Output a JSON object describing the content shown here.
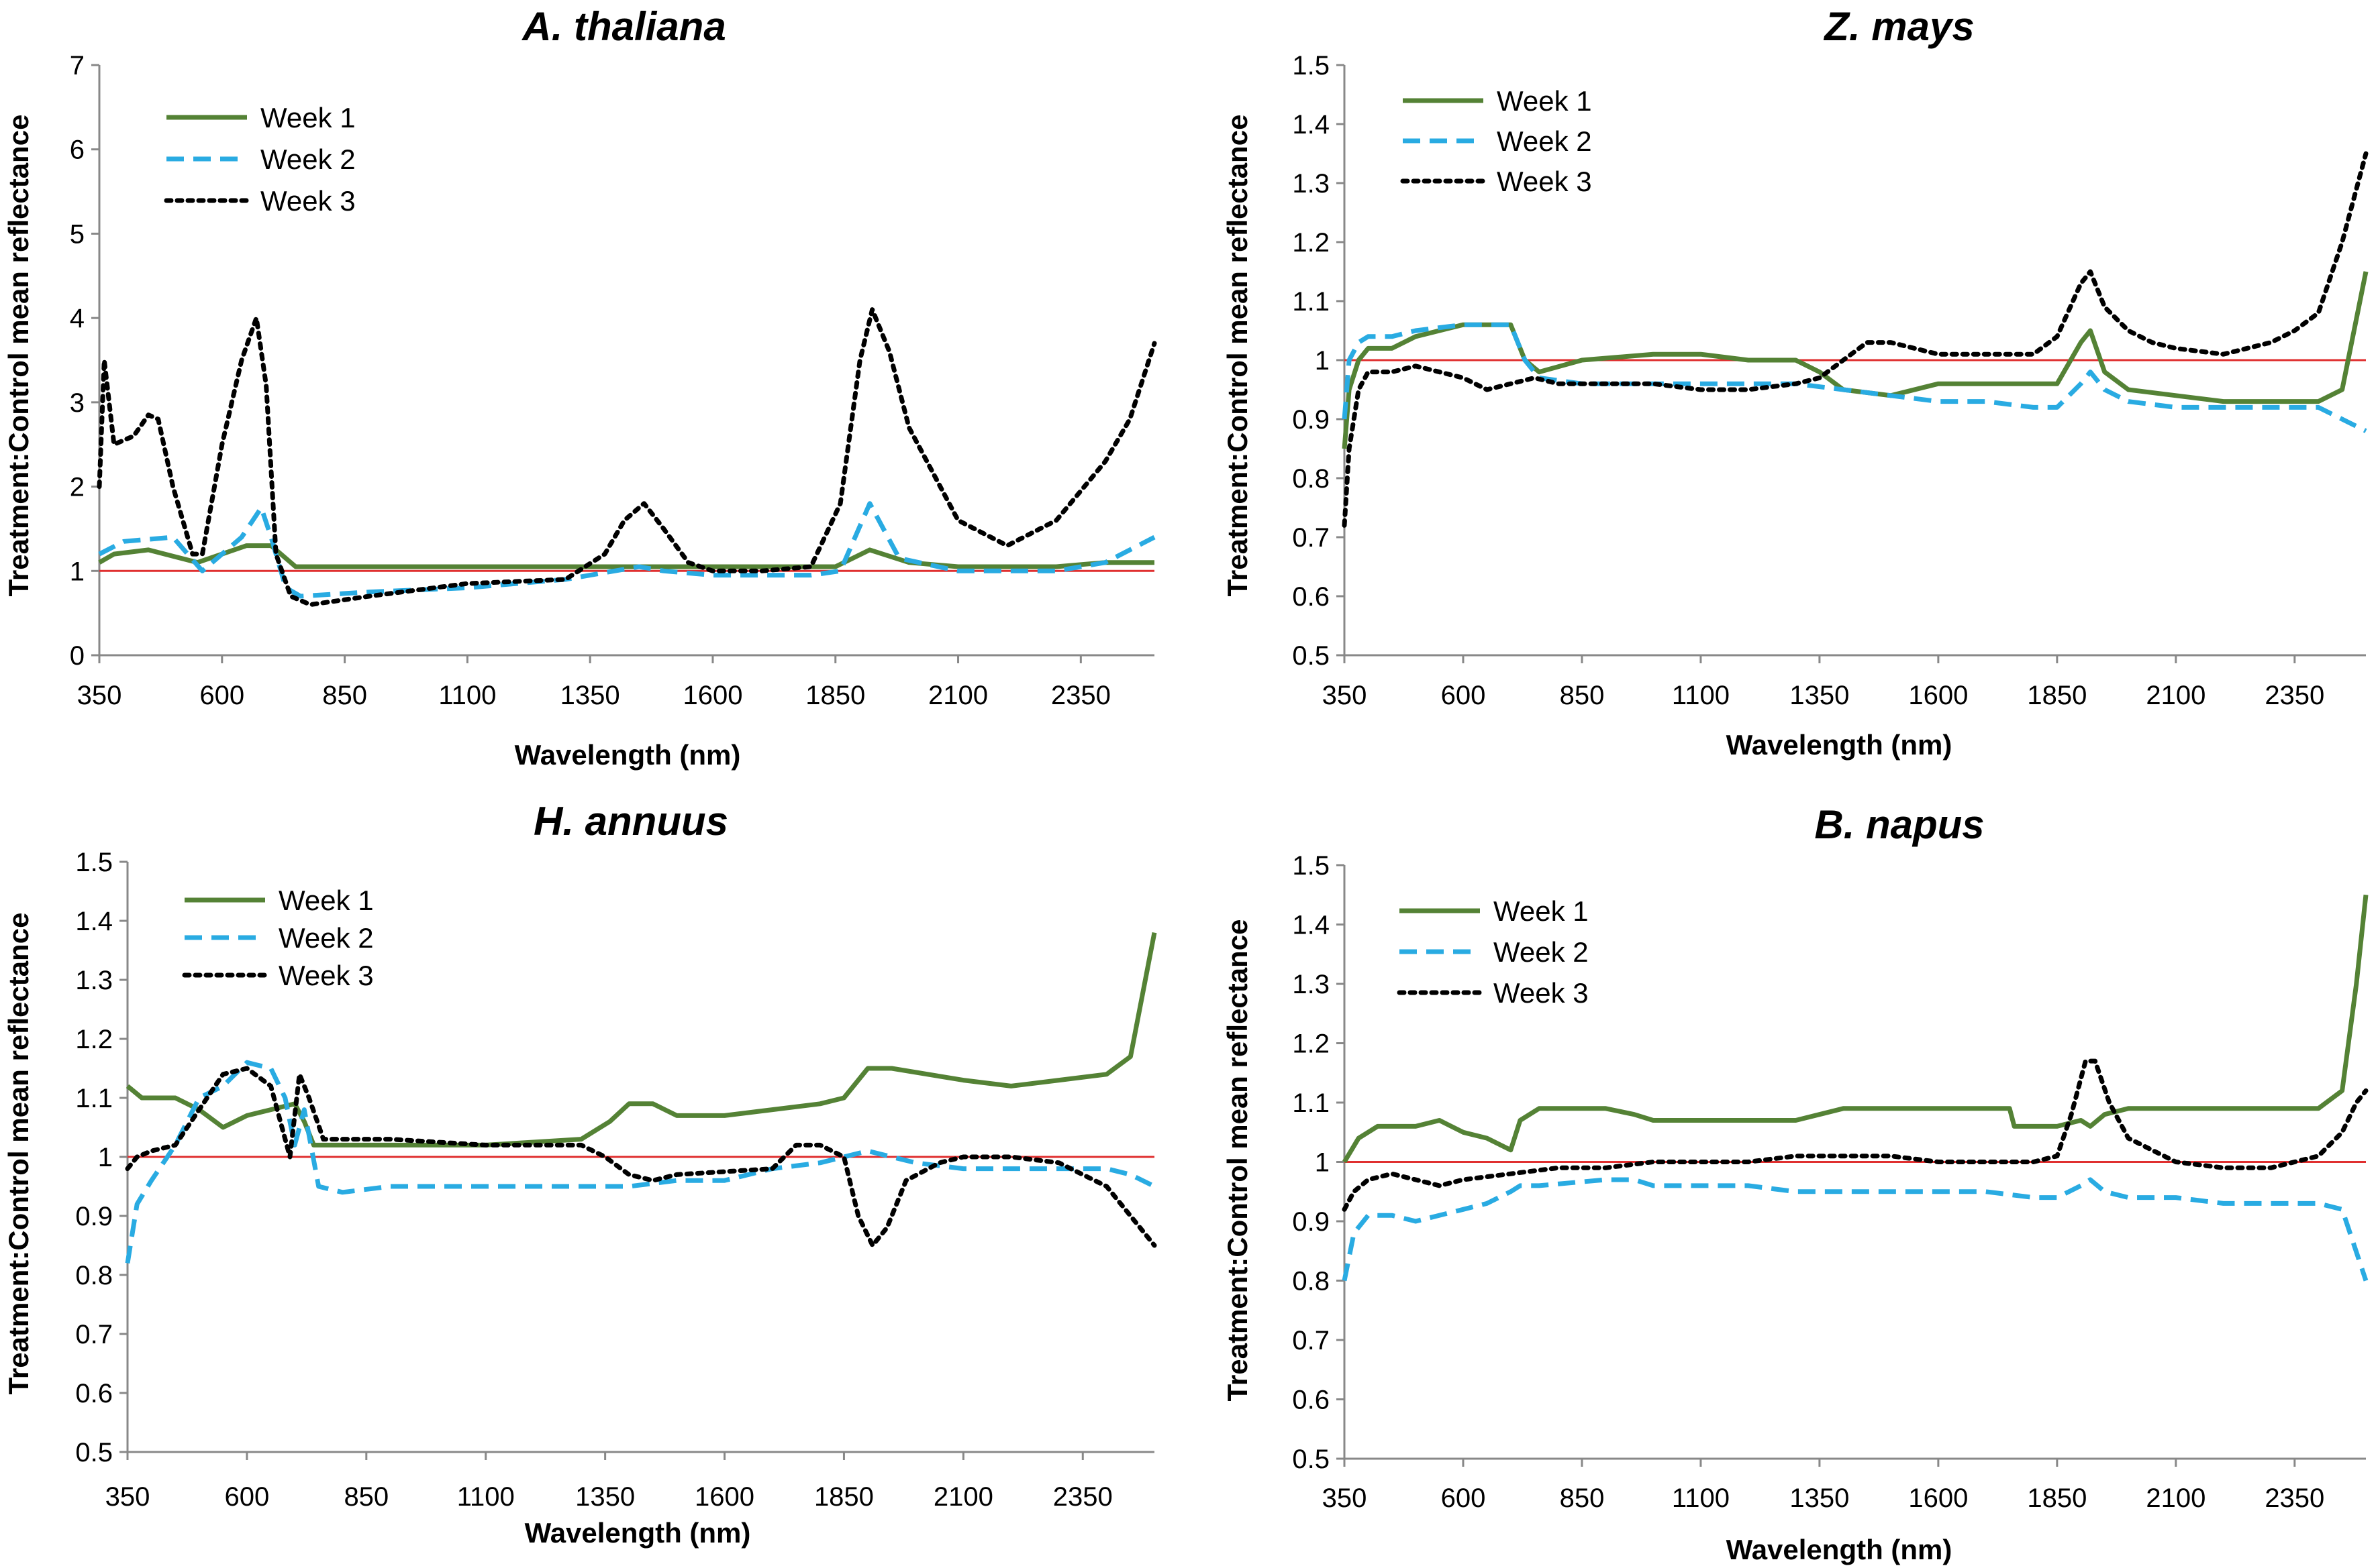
{
  "chart_data": [
    {
      "type": "line",
      "title": "A. thaliana",
      "xlabel": "Wavelength (nm)",
      "ylabel": "Treatment:Control mean reflectance",
      "xlim": [
        350,
        2500
      ],
      "ylim": [
        0,
        7
      ],
      "xticks": [
        "350",
        "600",
        "850",
        "1100",
        "1350",
        "1600",
        "1850",
        "2100",
        "2350"
      ],
      "yticks": [
        "0",
        "1",
        "2",
        "3",
        "4",
        "5",
        "6",
        "7"
      ],
      "reference_line": 1,
      "legend": [
        "Week 1",
        "Week 2",
        "Week 3"
      ],
      "series": [
        {
          "name": "Week 1",
          "x": [
            350,
            380,
            450,
            550,
            650,
            700,
            750,
            900,
            1100,
            1300,
            1400,
            1500,
            1700,
            1850,
            1920,
            2000,
            2100,
            2300,
            2400,
            2500
          ],
          "y": [
            1.1,
            1.2,
            1.25,
            1.1,
            1.3,
            1.3,
            1.05,
            1.05,
            1.05,
            1.05,
            1.05,
            1.05,
            1.05,
            1.05,
            1.25,
            1.1,
            1.05,
            1.05,
            1.1,
            1.1
          ]
        },
        {
          "name": "Week 2",
          "x": [
            350,
            400,
            500,
            560,
            640,
            680,
            700,
            730,
            760,
            900,
            1100,
            1300,
            1400,
            1450,
            1500,
            1600,
            1800,
            1860,
            1920,
            1980,
            2100,
            2300,
            2400,
            2500
          ],
          "y": [
            1.2,
            1.35,
            1.4,
            1.0,
            1.4,
            1.75,
            1.4,
            0.8,
            0.7,
            0.75,
            0.8,
            0.9,
            1.0,
            1.05,
            1.0,
            0.95,
            0.95,
            1.0,
            1.8,
            1.15,
            1.0,
            1.0,
            1.1,
            1.4
          ]
        },
        {
          "name": "Week 3",
          "x": [
            350,
            360,
            380,
            420,
            450,
            470,
            500,
            540,
            560,
            600,
            640,
            670,
            690,
            710,
            740,
            780,
            900,
            1100,
            1300,
            1380,
            1420,
            1460,
            1500,
            1550,
            1600,
            1700,
            1800,
            1860,
            1900,
            1925,
            1960,
            2000,
            2100,
            2200,
            2300,
            2400,
            2450,
            2500
          ],
          "y": [
            2.0,
            3.5,
            2.5,
            2.6,
            2.85,
            2.8,
            2.0,
            1.2,
            1.2,
            2.5,
            3.5,
            4.0,
            3.2,
            1.2,
            0.7,
            0.6,
            0.7,
            0.85,
            0.9,
            1.2,
            1.6,
            1.8,
            1.5,
            1.1,
            1.0,
            1.0,
            1.05,
            1.8,
            3.5,
            4.1,
            3.6,
            2.7,
            1.6,
            1.3,
            1.6,
            2.3,
            2.8,
            3.7
          ]
        }
      ]
    },
    {
      "type": "line",
      "title": "Z. mays",
      "xlabel": "Wavelength (nm)",
      "ylabel": "Treatment:Control mean reflectance",
      "xlim": [
        350,
        2500
      ],
      "ylim": [
        0.5,
        1.5
      ],
      "xticks": [
        "350",
        "600",
        "850",
        "1100",
        "1350",
        "1600",
        "1850",
        "2100",
        "2350"
      ],
      "yticks": [
        "0.5",
        "0.6",
        "0.7",
        "0.8",
        "0.9",
        "1",
        "1.1",
        "1.2",
        "1.3",
        "1.4",
        "1.5"
      ],
      "reference_line": 1,
      "legend": [
        "Week 1",
        "Week 2",
        "Week 3"
      ],
      "series": [
        {
          "name": "Week 1",
          "x": [
            350,
            360,
            380,
            400,
            450,
            500,
            600,
            700,
            730,
            760,
            850,
            1000,
            1100,
            1200,
            1300,
            1350,
            1400,
            1500,
            1600,
            1700,
            1800,
            1850,
            1900,
            1920,
            1950,
            2000,
            2100,
            2200,
            2300,
            2400,
            2450,
            2500
          ],
          "y": [
            0.85,
            0.95,
            1.0,
            1.02,
            1.02,
            1.04,
            1.06,
            1.06,
            1.0,
            0.98,
            1.0,
            1.01,
            1.01,
            1.0,
            1.0,
            0.98,
            0.95,
            0.94,
            0.96,
            0.96,
            0.96,
            0.96,
            1.03,
            1.05,
            0.98,
            0.95,
            0.94,
            0.93,
            0.93,
            0.93,
            0.95,
            1.15
          ]
        },
        {
          "name": "Week 2",
          "x": [
            350,
            360,
            380,
            400,
            450,
            500,
            600,
            700,
            730,
            760,
            850,
            1000,
            1100,
            1200,
            1300,
            1400,
            1500,
            1600,
            1700,
            1800,
            1850,
            1900,
            1920,
            1950,
            2000,
            2100,
            2200,
            2300,
            2400,
            2450,
            2500
          ],
          "y": [
            0.9,
            1.0,
            1.03,
            1.04,
            1.04,
            1.05,
            1.06,
            1.06,
            1.0,
            0.97,
            0.96,
            0.96,
            0.96,
            0.96,
            0.96,
            0.95,
            0.94,
            0.93,
            0.93,
            0.92,
            0.92,
            0.96,
            0.98,
            0.95,
            0.93,
            0.92,
            0.92,
            0.92,
            0.92,
            0.9,
            0.88
          ]
        },
        {
          "name": "Week 3",
          "x": [
            350,
            360,
            380,
            400,
            450,
            500,
            600,
            650,
            700,
            750,
            800,
            900,
            1000,
            1100,
            1200,
            1300,
            1350,
            1400,
            1450,
            1500,
            1600,
            1700,
            1800,
            1850,
            1900,
            1920,
            1950,
            2000,
            2050,
            2100,
            2200,
            2300,
            2350,
            2400,
            2450,
            2500
          ],
          "y": [
            0.72,
            0.85,
            0.95,
            0.98,
            0.98,
            0.99,
            0.97,
            0.95,
            0.96,
            0.97,
            0.96,
            0.96,
            0.96,
            0.95,
            0.95,
            0.96,
            0.97,
            1.0,
            1.03,
            1.03,
            1.01,
            1.01,
            1.01,
            1.04,
            1.13,
            1.15,
            1.09,
            1.05,
            1.03,
            1.02,
            1.01,
            1.03,
            1.05,
            1.08,
            1.2,
            1.35
          ]
        }
      ]
    },
    {
      "type": "line",
      "title": "H. annuus",
      "xlabel": "Wavelength (nm)",
      "ylabel": "Treatment:Control mean reflectance",
      "xlim": [
        350,
        2500
      ],
      "ylim": [
        0.5,
        1.5
      ],
      "xticks": [
        "350",
        "600",
        "850",
        "1100",
        "1350",
        "1600",
        "1850",
        "2100",
        "2350"
      ],
      "yticks": [
        "0.5",
        "0.6",
        "0.7",
        "0.8",
        "0.9",
        "1",
        "1.1",
        "1.2",
        "1.3",
        "1.4",
        "1.5"
      ],
      "reference_line": 1,
      "legend": [
        "Week 1",
        "Week 2",
        "Week 3"
      ],
      "series": [
        {
          "name": "Week 1",
          "x": [
            350,
            380,
            450,
            500,
            550,
            600,
            650,
            700,
            720,
            740,
            900,
            1100,
            1300,
            1360,
            1400,
            1450,
            1500,
            1600,
            1700,
            1800,
            1850,
            1900,
            1950,
            2100,
            2200,
            2300,
            2400,
            2450,
            2500
          ],
          "y": [
            1.12,
            1.1,
            1.1,
            1.08,
            1.05,
            1.07,
            1.08,
            1.09,
            1.06,
            1.02,
            1.02,
            1.02,
            1.03,
            1.06,
            1.09,
            1.09,
            1.07,
            1.07,
            1.08,
            1.09,
            1.1,
            1.15,
            1.15,
            1.13,
            1.12,
            1.13,
            1.14,
            1.17,
            1.38
          ]
        },
        {
          "name": "Week 2",
          "x": [
            350,
            370,
            400,
            450,
            500,
            550,
            600,
            650,
            680,
            700,
            720,
            750,
            800,
            900,
            1000,
            1100,
            1200,
            1300,
            1400,
            1500,
            1600,
            1700,
            1800,
            1900,
            1950,
            2000,
            2100,
            2200,
            2300,
            2400,
            2450,
            2500
          ],
          "y": [
            0.82,
            0.92,
            0.96,
            1.02,
            1.1,
            1.12,
            1.16,
            1.15,
            1.1,
            1.02,
            1.08,
            0.95,
            0.94,
            0.95,
            0.95,
            0.95,
            0.95,
            0.95,
            0.95,
            0.96,
            0.96,
            0.98,
            0.99,
            1.01,
            1.0,
            0.99,
            0.98,
            0.98,
            0.98,
            0.98,
            0.97,
            0.95
          ]
        },
        {
          "name": "Week 3",
          "x": [
            350,
            370,
            400,
            450,
            500,
            550,
            600,
            650,
            690,
            710,
            730,
            760,
            900,
            1100,
            1300,
            1350,
            1400,
            1450,
            1500,
            1700,
            1750,
            1800,
            1850,
            1880,
            1910,
            1940,
            1980,
            2050,
            2100,
            2200,
            2300,
            2400,
            2450,
            2500
          ],
          "y": [
            0.98,
            1.0,
            1.01,
            1.02,
            1.08,
            1.14,
            1.15,
            1.12,
            1.0,
            1.14,
            1.1,
            1.03,
            1.03,
            1.02,
            1.02,
            1.0,
            0.97,
            0.96,
            0.97,
            0.98,
            1.02,
            1.02,
            1.0,
            0.9,
            0.85,
            0.88,
            0.96,
            0.99,
            1.0,
            1.0,
            0.99,
            0.95,
            0.9,
            0.85
          ]
        }
      ]
    },
    {
      "type": "line",
      "title": "B. napus",
      "xlabel": "Wavelength (nm)",
      "ylabel": "Treatment:Control mean reflectance",
      "xlim": [
        350,
        2500
      ],
      "ylim": [
        0.5,
        1.5
      ],
      "xticks": [
        "350",
        "600",
        "850",
        "1100",
        "1350",
        "1600",
        "1850",
        "2100",
        "2350"
      ],
      "yticks": [
        "0.5",
        "0.6",
        "0.7",
        "0.8",
        "0.9",
        "1",
        "1.1",
        "1.2",
        "1.3",
        "1.4",
        "1.5"
      ],
      "reference_line": 1,
      "legend": [
        "Week 1",
        "Week 2",
        "Week 3"
      ],
      "series": [
        {
          "name": "Week 1",
          "x": [
            350,
            380,
            420,
            500,
            550,
            600,
            650,
            700,
            720,
            760,
            800,
            900,
            960,
            1000,
            1100,
            1200,
            1300,
            1350,
            1400,
            1500,
            1600,
            1700,
            1750,
            1760,
            1800,
            1850,
            1900,
            1920,
            1950,
            2000,
            2100,
            2200,
            2300,
            2400,
            2450,
            2480,
            2500
          ],
          "y": [
            1.0,
            1.04,
            1.06,
            1.06,
            1.07,
            1.05,
            1.04,
            1.02,
            1.07,
            1.09,
            1.09,
            1.09,
            1.08,
            1.07,
            1.07,
            1.07,
            1.07,
            1.08,
            1.09,
            1.09,
            1.09,
            1.09,
            1.09,
            1.06,
            1.06,
            1.06,
            1.07,
            1.06,
            1.08,
            1.09,
            1.09,
            1.09,
            1.09,
            1.09,
            1.12,
            1.3,
            1.45
          ]
        },
        {
          "name": "Week 2",
          "x": [
            350,
            370,
            400,
            450,
            500,
            600,
            650,
            700,
            720,
            760,
            900,
            960,
            1000,
            1100,
            1200,
            1300,
            1400,
            1500,
            1600,
            1700,
            1800,
            1850,
            1900,
            1920,
            1950,
            2000,
            2100,
            2200,
            2300,
            2400,
            2450,
            2500
          ],
          "y": [
            0.8,
            0.88,
            0.91,
            0.91,
            0.9,
            0.92,
            0.93,
            0.95,
            0.96,
            0.96,
            0.97,
            0.97,
            0.96,
            0.96,
            0.96,
            0.95,
            0.95,
            0.95,
            0.95,
            0.95,
            0.94,
            0.94,
            0.96,
            0.97,
            0.95,
            0.94,
            0.94,
            0.93,
            0.93,
            0.93,
            0.92,
            0.8
          ]
        },
        {
          "name": "Week 3",
          "x": [
            350,
            370,
            400,
            450,
            500,
            550,
            600,
            700,
            800,
            900,
            1000,
            1100,
            1200,
            1300,
            1400,
            1500,
            1600,
            1700,
            1800,
            1850,
            1880,
            1910,
            1930,
            1960,
            2000,
            2050,
            2100,
            2200,
            2300,
            2350,
            2400,
            2450,
            2480,
            2500
          ],
          "y": [
            0.92,
            0.95,
            0.97,
            0.98,
            0.97,
            0.96,
            0.97,
            0.98,
            0.99,
            0.99,
            1.0,
            1.0,
            1.0,
            1.01,
            1.01,
            1.01,
            1.0,
            1.0,
            1.0,
            1.01,
            1.08,
            1.17,
            1.17,
            1.1,
            1.04,
            1.02,
            1.0,
            0.99,
            0.99,
            1.0,
            1.01,
            1.05,
            1.1,
            1.12
          ]
        }
      ]
    }
  ],
  "colors": {
    "week1": "#548235",
    "week2": "#29abe2",
    "week3": "#000000",
    "reference": "#e03030",
    "axis": "#888888"
  }
}
